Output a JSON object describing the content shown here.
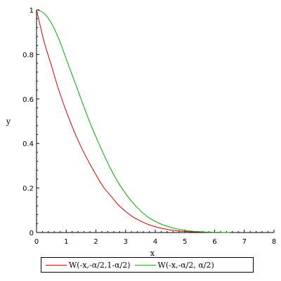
{
  "chart_data": {
    "type": "line",
    "xlabel": "x",
    "ylabel": "y",
    "xlim": [
      0,
      8
    ],
    "ylim": [
      0,
      1
    ],
    "x_ticks": [
      "0",
      "1",
      "2",
      "3",
      "4",
      "5",
      "6",
      "7",
      "8"
    ],
    "y_ticks": [
      "0",
      "0.2",
      "0.4",
      "0.6",
      "0.8",
      "1"
    ],
    "legend_position": "bottom",
    "series": [
      {
        "name": "W(-x,-α/2,1-α/2)",
        "color": "#cc0000",
        "x": [
          0,
          0.25,
          0.5,
          0.75,
          1,
          1.25,
          1.5,
          1.75,
          2,
          2.25,
          2.5,
          2.75,
          3,
          3.25,
          3.5,
          3.75,
          4,
          4.25,
          4.5,
          4.75,
          5,
          5.25,
          5.5,
          5.75,
          6
        ],
        "y": [
          1.0,
          0.86,
          0.75,
          0.64,
          0.545,
          0.46,
          0.385,
          0.32,
          0.26,
          0.205,
          0.165,
          0.125,
          0.095,
          0.07,
          0.052,
          0.037,
          0.026,
          0.018,
          0.012,
          0.008,
          0.005,
          0.003,
          0.002,
          0.001,
          0.0
        ]
      },
      {
        "name": "W(-x,-α/2, α/2)",
        "color": "#00aa00",
        "x": [
          0,
          0.25,
          0.5,
          0.75,
          1,
          1.25,
          1.5,
          1.75,
          2,
          2.25,
          2.5,
          2.75,
          3,
          3.25,
          3.5,
          3.75,
          4,
          4.25,
          4.5,
          4.75,
          5,
          5.25,
          5.5,
          5.75,
          6,
          6.25,
          6.5
        ],
        "y": [
          1.0,
          0.985,
          0.94,
          0.87,
          0.78,
          0.69,
          0.6,
          0.51,
          0.43,
          0.355,
          0.285,
          0.225,
          0.175,
          0.133,
          0.098,
          0.07,
          0.05,
          0.035,
          0.024,
          0.016,
          0.01,
          0.006,
          0.004,
          0.002,
          0.001,
          0.0005,
          0.0
        ]
      }
    ]
  }
}
